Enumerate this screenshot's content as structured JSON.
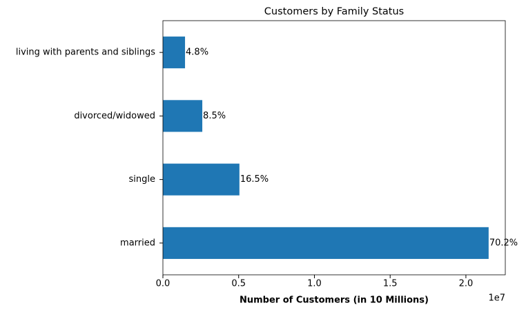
{
  "chart_data": {
    "type": "barh",
    "title": "Customers by Family Status",
    "categories": [
      "married",
      "single",
      "divorced/widowed",
      "living with parents and siblings"
    ],
    "values": [
      2.15,
      0.505,
      0.26,
      0.146
    ],
    "bar_labels": [
      "70.2%",
      "16.5%",
      "8.5%",
      "4.8%"
    ],
    "color": "#1f77b4",
    "xlabel": "Number of Customers (in 10 Millions)",
    "x_offset_label": "1e7",
    "xlim": [
      0,
      2.26
    ],
    "xticks": [
      {
        "value": 0,
        "label": "0.0"
      },
      {
        "value": 0.5,
        "label": "0.5"
      },
      {
        "value": 1,
        "label": "1.0"
      },
      {
        "value": 1.5,
        "label": "1.5"
      },
      {
        "value": 2,
        "label": "2.0"
      }
    ],
    "grid": false
  }
}
